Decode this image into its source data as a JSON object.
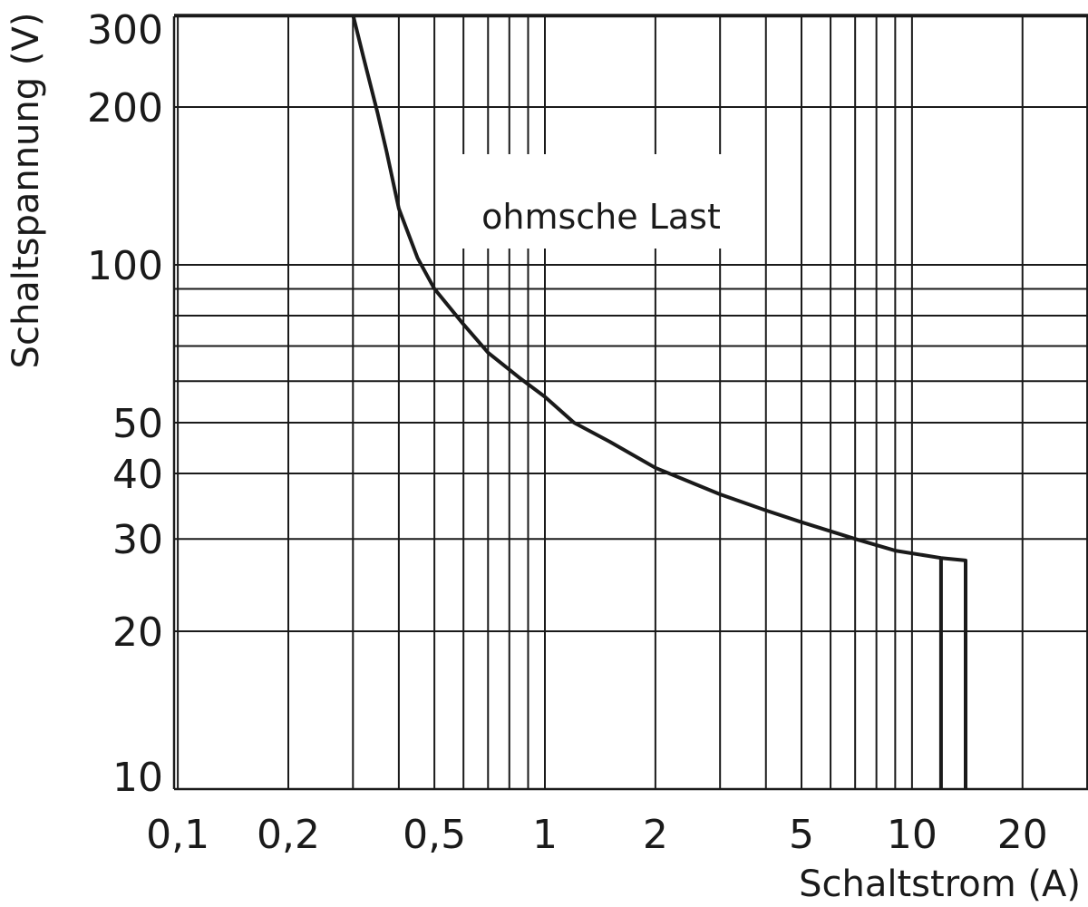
{
  "chart_data": {
    "type": "line",
    "x_scale": "log",
    "y_scale": "log",
    "xlim": [
      0.1,
      30
    ],
    "ylim": [
      10,
      300
    ],
    "grid": true,
    "xlabel": "Schaltstrom (A)",
    "ylabel": "Schaltspannung (V)",
    "annotation": "ohmsche Last",
    "x_gridlines": [
      0.1,
      0.2,
      0.3,
      0.4,
      0.5,
      0.6,
      0.7,
      0.8,
      0.9,
      1,
      2,
      3,
      4,
      5,
      6,
      7,
      8,
      9,
      10,
      20,
      30
    ],
    "y_gridlines": [
      10,
      20,
      30,
      40,
      50,
      60,
      70,
      80,
      90,
      100,
      200,
      300
    ],
    "x_tick_labels": [
      {
        "value": 0.1,
        "label": "0,1"
      },
      {
        "value": 0.2,
        "label": "0,2"
      },
      {
        "value": 0.5,
        "label": "0,5"
      },
      {
        "value": 1,
        "label": "1"
      },
      {
        "value": 2,
        "label": "2"
      },
      {
        "value": 5,
        "label": "5"
      },
      {
        "value": 10,
        "label": "10"
      },
      {
        "value": 20,
        "label": "20"
      }
    ],
    "y_tick_labels": [
      {
        "value": 300,
        "label": "300"
      },
      {
        "value": 200,
        "label": "200"
      },
      {
        "value": 100,
        "label": "100"
      },
      {
        "value": 50,
        "label": "50"
      },
      {
        "value": 40,
        "label": "40"
      },
      {
        "value": 30,
        "label": "30"
      },
      {
        "value": 20,
        "label": "20"
      },
      {
        "value": 10,
        "label": "10"
      }
    ],
    "series": [
      {
        "color": "#1a1a1a",
        "points": [
          [
            0.3,
            300
          ],
          [
            0.32,
            250
          ],
          [
            0.35,
            195
          ],
          [
            0.37,
            165
          ],
          [
            0.4,
            128
          ],
          [
            0.45,
            103
          ],
          [
            0.5,
            90
          ],
          [
            0.6,
            77
          ],
          [
            0.7,
            68
          ],
          [
            0.85,
            61
          ],
          [
            1.0,
            56
          ],
          [
            1.2,
            50
          ],
          [
            1.5,
            46
          ],
          [
            2.0,
            41
          ],
          [
            3.0,
            36.5
          ],
          [
            4.0,
            34
          ],
          [
            5.0,
            32.3
          ],
          [
            7.0,
            30
          ],
          [
            9.0,
            28.5
          ],
          [
            12.0,
            27.6
          ],
          [
            14.0,
            27.3
          ],
          [
            14.0,
            10
          ]
        ]
      },
      {
        "color": "#1a1a1a",
        "points": [
          [
            12.0,
            27.6
          ],
          [
            12.0,
            10
          ]
        ]
      }
    ]
  }
}
